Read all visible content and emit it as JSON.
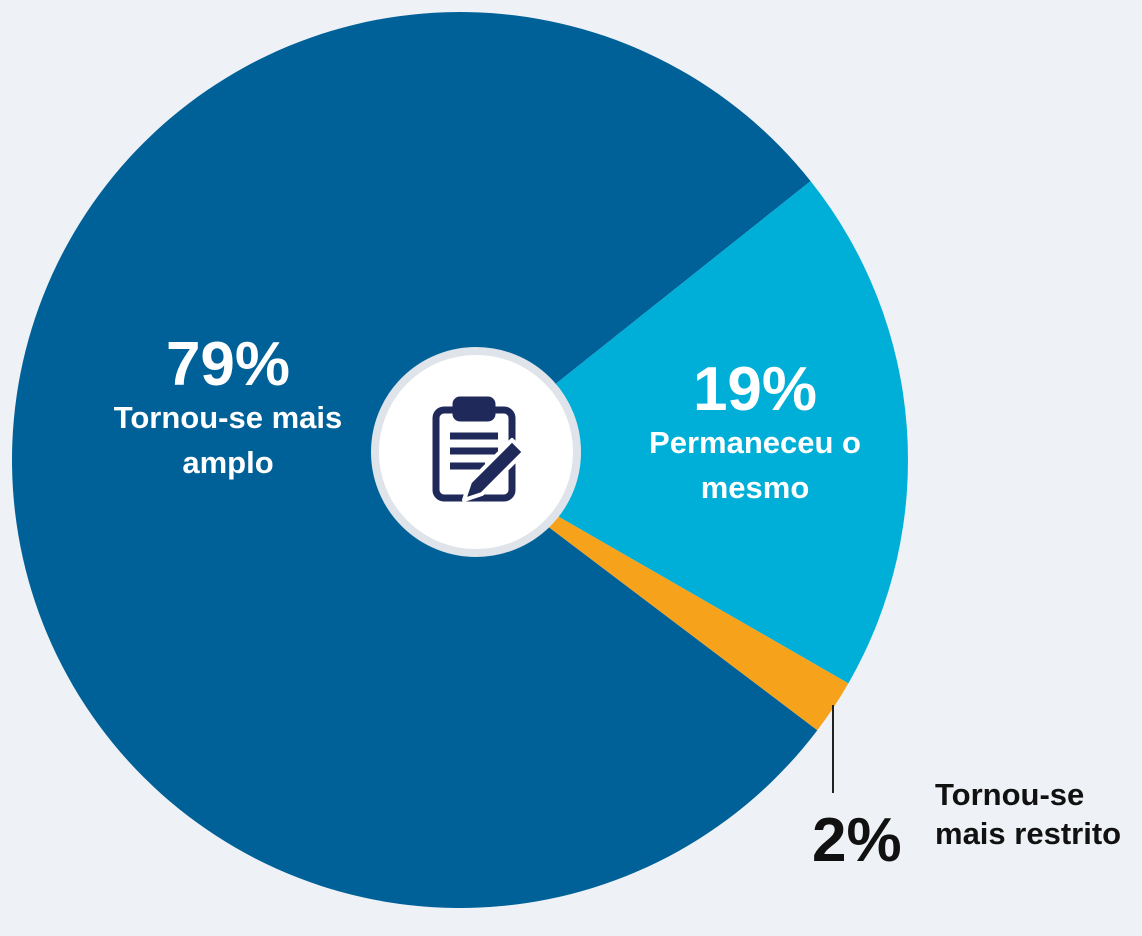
{
  "chart_data": {
    "type": "pie",
    "categories": [
      "Tornou-se mais amplo",
      "Permaneceu o mesmo",
      "Tornou-se mais restrito"
    ],
    "values": [
      79,
      19,
      2
    ],
    "value_labels": [
      "79%",
      "19%",
      "2%"
    ],
    "colors": [
      "#006199",
      "#00afd8",
      "#f7a21b"
    ]
  }
}
